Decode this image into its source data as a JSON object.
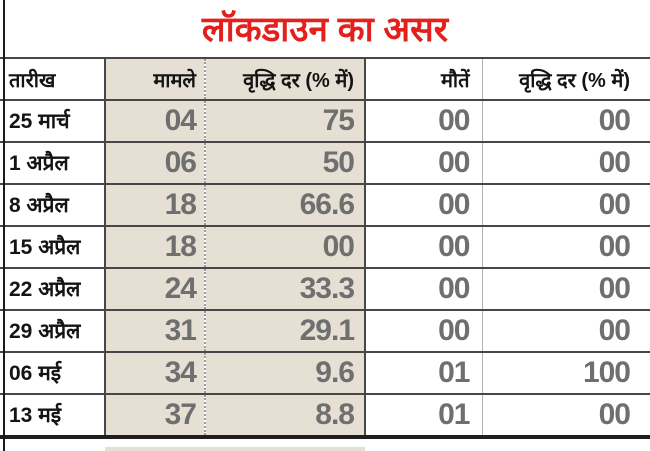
{
  "title": "लॉकडाउन का असर",
  "colors": {
    "title": "#e3201b",
    "highlight_column": "#e6dfd3",
    "number_text": "#6f6f6f",
    "grid_line": "#474747"
  },
  "chart_data": {
    "type": "table",
    "title": "लॉकडाउन का असर",
    "columns": [
      "तारीख",
      "मामले",
      "वृद्धि दर (% में)",
      "मौतें",
      "वृद्धि दर (% में)"
    ],
    "rows": [
      {
        "date": "25 मार्च",
        "cases": "04",
        "cases_growth_pct": "75",
        "deaths": "00",
        "deaths_growth_pct": "00"
      },
      {
        "date": "1 अप्रैल",
        "cases": "06",
        "cases_growth_pct": "50",
        "deaths": "00",
        "deaths_growth_pct": "00"
      },
      {
        "date": "8 अप्रैल",
        "cases": "18",
        "cases_growth_pct": "66.6",
        "deaths": "00",
        "deaths_growth_pct": "00"
      },
      {
        "date": "15 अप्रैल",
        "cases": "18",
        "cases_growth_pct": "00",
        "deaths": "00",
        "deaths_growth_pct": "00"
      },
      {
        "date": "22 अप्रैल",
        "cases": "24",
        "cases_growth_pct": "33.3",
        "deaths": "00",
        "deaths_growth_pct": "00"
      },
      {
        "date": "29 अप्रैल",
        "cases": "31",
        "cases_growth_pct": "29.1",
        "deaths": "00",
        "deaths_growth_pct": "00"
      },
      {
        "date": "06 मई",
        "cases": "34",
        "cases_growth_pct": "9.6",
        "deaths": "01",
        "deaths_growth_pct": "100"
      },
      {
        "date": "13 मई",
        "cases": "37",
        "cases_growth_pct": "8.8",
        "deaths": "01",
        "deaths_growth_pct": "00"
      }
    ]
  }
}
